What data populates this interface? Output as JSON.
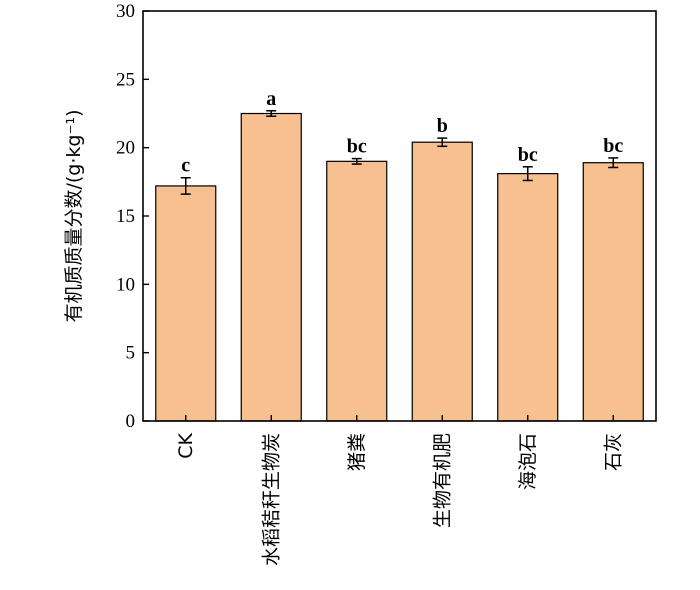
{
  "chart_data": {
    "type": "bar",
    "title": "",
    "xlabel": "",
    "ylabel": "有机质质量分数/(g·kg⁻¹)",
    "ylim": [
      0,
      30
    ],
    "yticks": [
      "0",
      "5",
      "10",
      "15",
      "20",
      "25",
      "30"
    ],
    "grid": false,
    "categories": [
      "CK",
      "水稻秸秆生物炭",
      "猪粪",
      "生物有机肥",
      "海泡石",
      "石灰"
    ],
    "values": [
      17.2,
      22.5,
      19.0,
      20.4,
      18.1,
      18.9
    ],
    "errors": [
      0.6,
      0.2,
      0.2,
      0.3,
      0.5,
      0.35
    ],
    "significance_labels": [
      "c",
      "a",
      "bc",
      "b",
      "bc",
      "bc"
    ],
    "bar_color": "#f7c090",
    "bar_edge_color": "#000000"
  }
}
